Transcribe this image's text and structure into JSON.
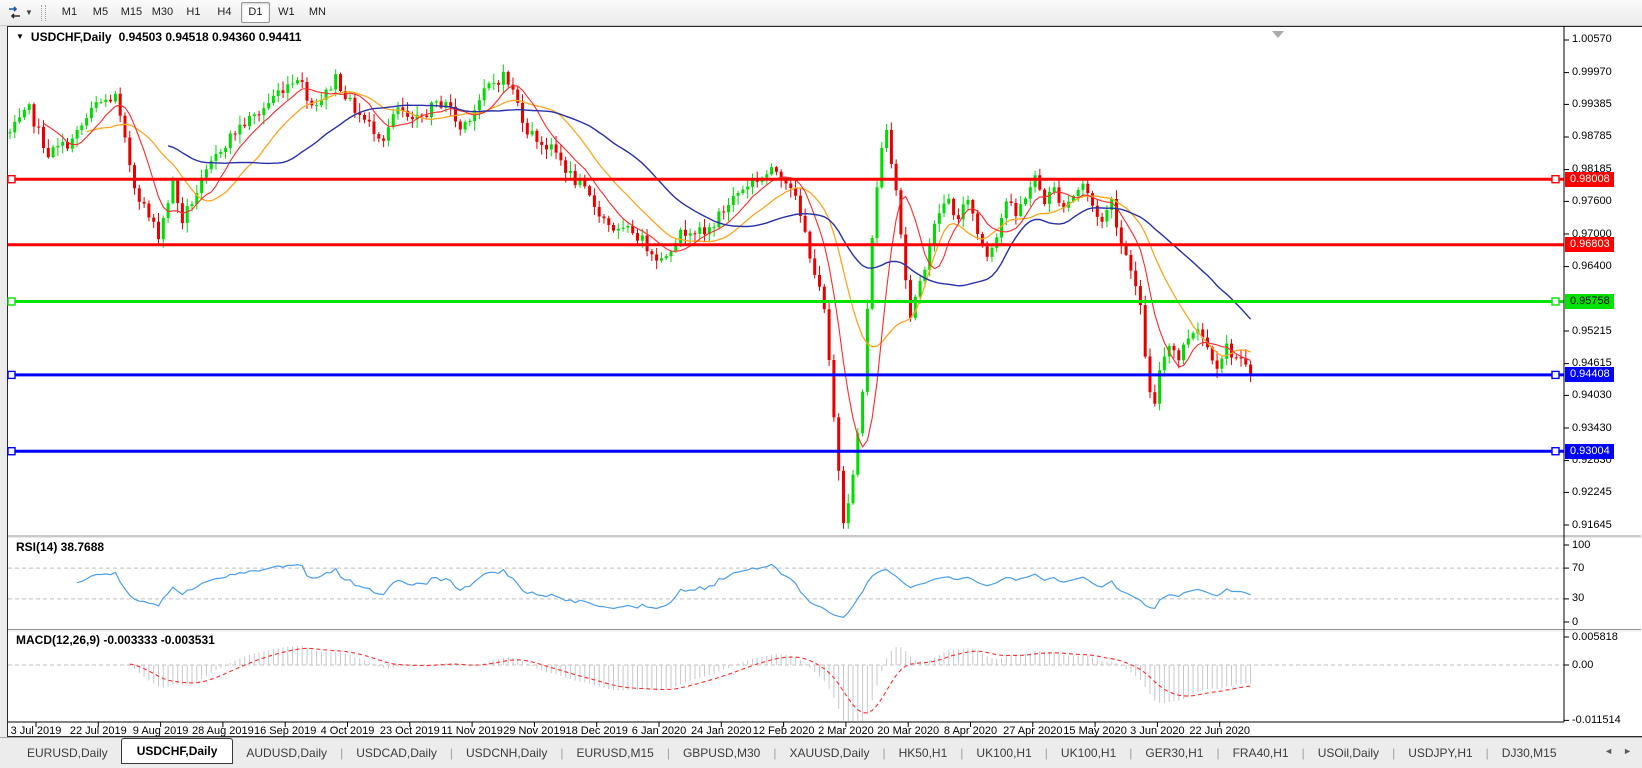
{
  "toolbar": {
    "timeframes": [
      "M1",
      "M5",
      "M15",
      "M30",
      "H1",
      "H4",
      "D1",
      "W1",
      "MN"
    ],
    "active_timeframe": "D1"
  },
  "chart": {
    "symbol": "USDCHF,Daily",
    "ohlc_text": "0.94503 0.94518 0.94360 0.94411"
  },
  "rsi": {
    "label": "RSI(14) 38.7688",
    "period": 14,
    "last_value": "38.7688",
    "ticks": [
      {
        "v": 100,
        "label": "100"
      },
      {
        "v": 70,
        "label": "70"
      },
      {
        "v": 30,
        "label": "30"
      },
      {
        "v": 0,
        "label": "0"
      }
    ],
    "dashed_levels": [
      70,
      30
    ]
  },
  "macd": {
    "label": "MACD(12,26,9) -0.003333 -0.003531",
    "values": [
      "-0.003333",
      "-0.003531"
    ],
    "ticks": [
      {
        "v": 0.005818,
        "label": "0.005818"
      },
      {
        "v": 0,
        "label": "0.00"
      },
      {
        "v": -0.011514,
        "label": "-0.011514"
      }
    ]
  },
  "price_axis": {
    "ticks": [
      "1.00570",
      "0.99970",
      "0.99385",
      "0.98785",
      "0.98185",
      "0.97600",
      "0.97000",
      "0.96400",
      "0.95215",
      "0.94615",
      "0.94030",
      "0.93430",
      "0.92830",
      "0.92245",
      "0.91645"
    ]
  },
  "date_axis": {
    "ticks": [
      "3 Jul 2019",
      "22 Jul 2019",
      "9 Aug 2019",
      "28 Aug 2019",
      "16 Sep 2019",
      "4 Oct 2019",
      "23 Oct 2019",
      "11 Nov 2019",
      "29 Nov 2019",
      "18 Dec 2019",
      "6 Jan 2020",
      "24 Jan 2020",
      "12 Feb 2020",
      "2 Mar 2020",
      "20 Mar 2020",
      "8 Apr 2020",
      "27 Apr 2020",
      "15 May 2020",
      "3 Jun 2020",
      "22 Jun 2020"
    ]
  },
  "tabs": {
    "items": [
      "EURUSD,Daily",
      "USDCHF,Daily",
      "AUDUSD,Daily",
      "USDCAD,Daily",
      "USDCNH,Daily",
      "EURUSD,M15",
      "GBPUSD,M30",
      "XAUUSD,Daily",
      "HK50,H1",
      "UK100,H1",
      "UK100,H1",
      "GER30,H1",
      "FRA40,H1",
      "USOil,Daily",
      "USDJPY,H1",
      "DJ30,M15"
    ],
    "active_index": 1
  },
  "colors": {
    "bull": "#00DC00",
    "bear": "#E80000",
    "ma_fast_red": "#FF2A2A",
    "ma_mid_orange": "#FFA520",
    "ma_slow_blue": "#2830A8",
    "level_red": "#FF0000",
    "level_green": "#00E400",
    "level_blue": "#0000FF",
    "rsi_line": "#4C9EEB",
    "macd_hist": "#C8C8C8",
    "macd_signal": "#FF2D2D",
    "grid_dash": "#C0C0C0",
    "axis_line": "#000000"
  },
  "chart_data": {
    "type": "candlestick",
    "symbol": "USDCHF",
    "timeframe": "Daily",
    "ohlc_current": {
      "open": 0.94503,
      "high": 0.94518,
      "low": 0.9436,
      "close": 0.94411
    },
    "y_axis_range": [
      0.91535,
      1.00809
    ],
    "x_axis_dates": [
      "3 Jul 2019",
      "22 Jul 2019",
      "9 Aug 2019",
      "28 Aug 2019",
      "16 Sep 2019",
      "4 Oct 2019",
      "23 Oct 2019",
      "11 Nov 2019",
      "29 Nov 2019",
      "18 Dec 2019",
      "6 Jan 2020",
      "24 Jan 2020",
      "12 Feb 2020",
      "2 Mar 2020",
      "20 Mar 2020",
      "8 Apr 2020",
      "27 Apr 2020",
      "15 May 2020",
      "3 Jun 2020",
      "22 Jun 2020"
    ],
    "horizontal_levels": [
      {
        "price": 0.98008,
        "label": "0.98008",
        "color": "#FF0000",
        "text_color": "#FFFFFF",
        "selected": true
      },
      {
        "price": 0.96803,
        "label": "0.96803",
        "color": "#FF0000",
        "text_color": "#FFFFFF",
        "selected": false
      },
      {
        "price": 0.95758,
        "label": "0.95758",
        "color": "#00E400",
        "text_color": "#000000",
        "selected": true
      },
      {
        "price": 0.94408,
        "label": "0.94408",
        "color": "#0000FF",
        "text_color": "#FFFFFF",
        "selected": true
      },
      {
        "price": 0.93004,
        "label": "0.93004",
        "color": "#0000FF",
        "text_color": "#FFFFFF",
        "selected": true
      }
    ],
    "indicators": [
      {
        "name": "RSI",
        "period": 14,
        "last": 38.7688,
        "levels": [
          70,
          30
        ],
        "range": [
          0,
          100
        ]
      },
      {
        "name": "MACD",
        "fast": 12,
        "slow": 26,
        "signal": 9,
        "last_macd": -0.003333,
        "last_signal": -0.003531,
        "axis": [
          0.005818,
          0,
          -0.011514
        ]
      },
      {
        "name": "MovingAverages",
        "lines": [
          "fast red",
          "medium orange",
          "slow blue"
        ]
      }
    ],
    "approx_close_path": [
      [
        0,
        0.9885
      ],
      [
        4,
        0.9928
      ],
      [
        8,
        0.9848
      ],
      [
        13,
        0.9872
      ],
      [
        18,
        0.9938
      ],
      [
        22,
        0.9952
      ],
      [
        24,
        0.9868
      ],
      [
        26,
        0.979
      ],
      [
        29,
        0.973
      ],
      [
        31,
        0.97
      ],
      [
        34,
        0.9792
      ],
      [
        36,
        0.9725
      ],
      [
        39,
        0.9778
      ],
      [
        44,
        0.9858
      ],
      [
        48,
        0.9898
      ],
      [
        52,
        0.9922
      ],
      [
        56,
        0.9962
      ],
      [
        60,
        0.9992
      ],
      [
        63,
        0.9938
      ],
      [
        66,
        0.9958
      ],
      [
        68,
        0.999
      ],
      [
        71,
        0.994
      ],
      [
        74,
        0.9908
      ],
      [
        78,
        0.9878
      ],
      [
        81,
        0.993
      ],
      [
        84,
        0.9902
      ],
      [
        88,
        0.9932
      ],
      [
        91,
        0.9946
      ],
      [
        94,
        0.9892
      ],
      [
        97,
        0.9932
      ],
      [
        100,
        0.9972
      ],
      [
        103,
        0.9992
      ],
      [
        105,
        0.9962
      ],
      [
        108,
        0.9892
      ],
      [
        111,
        0.9868
      ],
      [
        114,
        0.9848
      ],
      [
        117,
        0.9808
      ],
      [
        120,
        0.9778
      ],
      [
        124,
        0.9728
      ],
      [
        127,
        0.9702
      ],
      [
        130,
        0.9706
      ],
      [
        133,
        0.9678
      ],
      [
        136,
        0.9652
      ],
      [
        139,
        0.9692
      ],
      [
        142,
        0.9712
      ],
      [
        145,
        0.9697
      ],
      [
        148,
        0.9732
      ],
      [
        151,
        0.9768
      ],
      [
        154,
        0.9792
      ],
      [
        157,
        0.9806
      ],
      [
        160,
        0.9817
      ],
      [
        163,
        0.9792
      ],
      [
        166,
        0.97
      ],
      [
        168,
        0.963
      ],
      [
        170,
        0.9558
      ],
      [
        172,
        0.936
      ],
      [
        174,
        0.9178
      ],
      [
        176,
        0.9252
      ],
      [
        178,
        0.941
      ],
      [
        180,
        0.97
      ],
      [
        182,
        0.9862
      ],
      [
        183,
        0.9892
      ],
      [
        185,
        0.9788
      ],
      [
        187,
        0.9618
      ],
      [
        188,
        0.9542
      ],
      [
        190,
        0.9608
      ],
      [
        192,
        0.9682
      ],
      [
        194,
        0.9742
      ],
      [
        196,
        0.9762
      ],
      [
        198,
        0.9722
      ],
      [
        200,
        0.9768
      ],
      [
        202,
        0.9702
      ],
      [
        204,
        0.9662
      ],
      [
        206,
        0.9702
      ],
      [
        208,
        0.9762
      ],
      [
        210,
        0.9732
      ],
      [
        212,
        0.9772
      ],
      [
        214,
        0.9802
      ],
      [
        216,
        0.9762
      ],
      [
        218,
        0.9782
      ],
      [
        220,
        0.9752
      ],
      [
        222,
        0.9772
      ],
      [
        224,
        0.9792
      ],
      [
        226,
        0.9752
      ],
      [
        228,
        0.9722
      ],
      [
        230,
        0.9762
      ],
      [
        232,
        0.9682
      ],
      [
        234,
        0.9642
      ],
      [
        236,
        0.956
      ],
      [
        238,
        0.9402
      ],
      [
        239,
        0.938
      ],
      [
        240,
        0.9452
      ],
      [
        242,
        0.9502
      ],
      [
        244,
        0.9472
      ],
      [
        246,
        0.9512
      ],
      [
        248,
        0.9532
      ],
      [
        250,
        0.9492
      ],
      [
        252,
        0.9462
      ],
      [
        254,
        0.9492
      ],
      [
        256,
        0.9472
      ],
      [
        258,
        0.9452
      ],
      [
        259,
        0.94411
      ]
    ]
  }
}
